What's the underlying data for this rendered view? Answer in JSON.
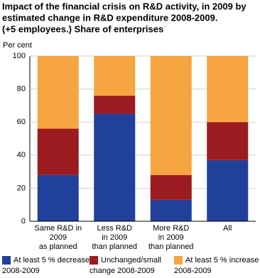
{
  "chart_data": {
    "type": "stacked_bar",
    "title": [
      "Impact of the financial crisis on R&D activity, in 2009 by",
      "estimated change in R&D expenditure 2008-2009.",
      "(+5 employees.) Share of enterprises"
    ],
    "y_label": "Per cent",
    "categories": [
      [
        "Same R&D in",
        "2009",
        "as planned"
      ],
      [
        "Less R&D",
        "in 2009",
        "than planned"
      ],
      [
        "More R&D",
        "in 2009",
        "than planned"
      ],
      [
        "All"
      ]
    ],
    "series": [
      {
        "name": [
          "At least 5 % decrease",
          "2008-2009"
        ],
        "color": "#21409a",
        "values": [
          28,
          65,
          13,
          37
        ]
      },
      {
        "name": [
          "Unchanged/small",
          "change 2008-2009"
        ],
        "color": "#9b1b20",
        "values": [
          28,
          11,
          15,
          23
        ]
      },
      {
        "name": [
          "At least 5 % increase",
          "2008-2009"
        ],
        "color": "#f7a541",
        "values": [
          44,
          24,
          72,
          40
        ]
      }
    ],
    "ylim": [
      0,
      100
    ],
    "yticks": [
      0,
      20,
      40,
      60,
      80,
      100
    ],
    "grid": true
  }
}
